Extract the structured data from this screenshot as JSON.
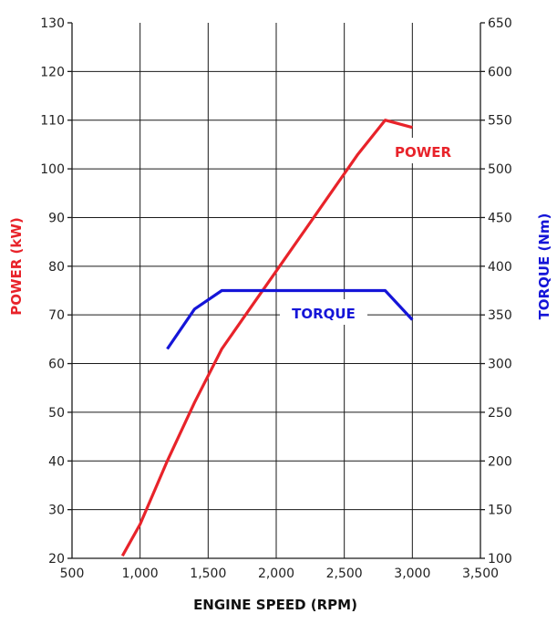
{
  "chart_data": {
    "type": "line",
    "xlabel": "ENGINE SPEED (RPM)",
    "ylabel_left": "POWER (kW)",
    "ylabel_right": "TORQUE (Nm)",
    "xlim": [
      500,
      3500
    ],
    "ylim_left": [
      20,
      130
    ],
    "ylim_right": [
      100,
      650
    ],
    "x_ticks": [
      500,
      1000,
      1500,
      2000,
      2500,
      3000,
      3500
    ],
    "x_tick_labels": [
      "500",
      "1,000",
      "1,500",
      "2,000",
      "2,500",
      "3,000",
      "3,500"
    ],
    "y_left_ticks": [
      20,
      30,
      40,
      50,
      60,
      70,
      80,
      90,
      100,
      110,
      120,
      130
    ],
    "y_left_tick_labels": [
      "20",
      "30",
      "40",
      "50",
      "60",
      "70",
      "80",
      "90",
      "100",
      "110",
      "120",
      "130"
    ],
    "y_right_ticks": [
      100,
      150,
      200,
      250,
      300,
      350,
      400,
      450,
      500,
      550,
      600,
      650
    ],
    "y_right_tick_labels": [
      "100",
      "150",
      "200",
      "250",
      "300",
      "350",
      "400",
      "450",
      "500",
      "550",
      "600",
      "650"
    ],
    "grid": true,
    "series": [
      {
        "name": "POWER",
        "axis": "left",
        "color": "#e8232a",
        "x": [
          870,
          1000,
          1200,
          1400,
          1600,
          1800,
          2000,
          2200,
          2400,
          2600,
          2800,
          3000
        ],
        "y": [
          20.5,
          27,
          40,
          52,
          63,
          71,
          79,
          87,
          95,
          103,
          110,
          108.5
        ]
      },
      {
        "name": "TORQUE",
        "axis": "right",
        "color": "#1515d8",
        "x": [
          1200,
          1400,
          1600,
          1800,
          2000,
          2200,
          2400,
          2600,
          2800,
          3000
        ],
        "y": [
          315,
          356,
          375,
          375,
          375,
          375,
          375,
          375,
          375,
          345
        ]
      }
    ]
  }
}
